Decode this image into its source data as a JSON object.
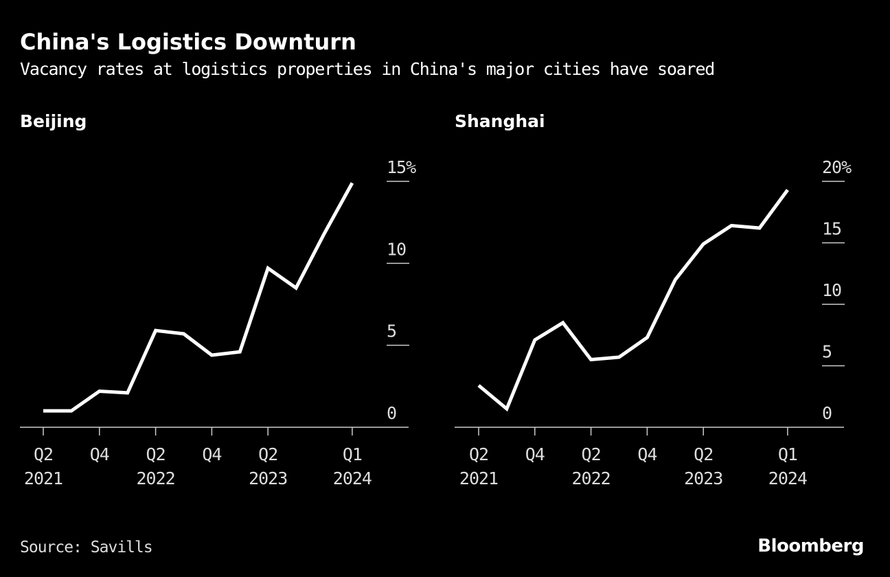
{
  "title": "China's Logistics Downturn",
  "subtitle": "Vacancy rates at logistics properties in China's major cities have soared",
  "source": "Source: Savills",
  "logo": "Bloomberg",
  "colors": {
    "background": "#000000",
    "line": "#ffffff",
    "text": "#dddddd"
  },
  "chart_data": [
    {
      "type": "line",
      "title": "Beijing",
      "x": [
        "Q2 2021",
        "Q3 2021",
        "Q4 2021",
        "Q1 2022",
        "Q2 2022",
        "Q3 2022",
        "Q4 2022",
        "Q1 2023",
        "Q2 2023",
        "Q3 2023",
        "Q4 2023",
        "Q1 2024"
      ],
      "values": [
        1.0,
        1.0,
        2.2,
        2.1,
        5.9,
        5.7,
        4.4,
        4.6,
        9.7,
        8.5,
        11.8,
        14.9
      ],
      "ylim": [
        0,
        15
      ],
      "yticks": [
        "0",
        "5",
        "10",
        "15%"
      ],
      "xticks": [
        {
          "top": "Q2",
          "bottom": "2021"
        },
        {
          "top": "Q4",
          "bottom": ""
        },
        {
          "top": "Q2",
          "bottom": "2022"
        },
        {
          "top": "Q4",
          "bottom": ""
        },
        {
          "top": "Q2",
          "bottom": "2023"
        },
        {
          "top": "Q1",
          "bottom": "2024"
        }
      ],
      "grid": false
    },
    {
      "type": "line",
      "title": "Shanghai",
      "x": [
        "Q2 2021",
        "Q3 2021",
        "Q4 2021",
        "Q1 2022",
        "Q2 2022",
        "Q3 2022",
        "Q4 2022",
        "Q1 2023",
        "Q2 2023",
        "Q3 2023",
        "Q4 2023",
        "Q1 2024"
      ],
      "values": [
        3.4,
        1.5,
        7.1,
        8.5,
        5.5,
        5.7,
        7.3,
        12.0,
        14.9,
        16.4,
        16.2,
        19.3
      ],
      "ylim": [
        0,
        20
      ],
      "yticks": [
        "0",
        "5",
        "10",
        "15",
        "20%"
      ],
      "xticks": [
        {
          "top": "Q2",
          "bottom": "2021"
        },
        {
          "top": "Q4",
          "bottom": ""
        },
        {
          "top": "Q2",
          "bottom": "2022"
        },
        {
          "top": "Q4",
          "bottom": ""
        },
        {
          "top": "Q2",
          "bottom": "2023"
        },
        {
          "top": "Q1",
          "bottom": "2024"
        }
      ],
      "grid": false
    }
  ]
}
